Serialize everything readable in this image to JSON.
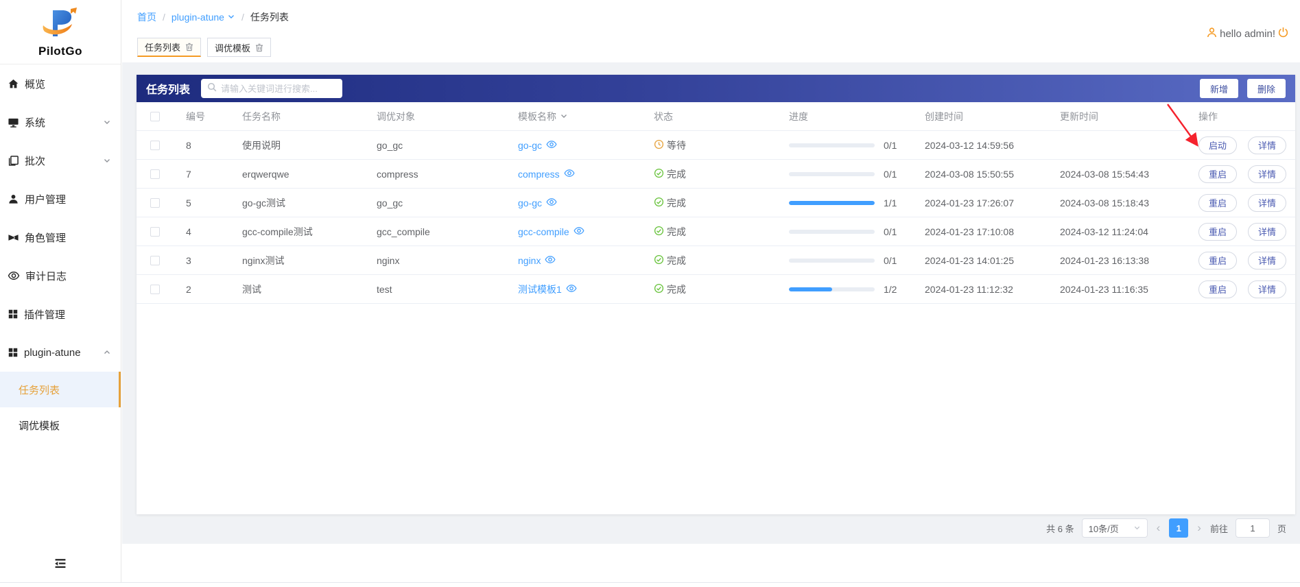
{
  "brand": {
    "name": "PilotGo"
  },
  "breadcrumb": {
    "items": [
      {
        "label": "首页",
        "link": true,
        "caret": false
      },
      {
        "label": "plugin-atune",
        "link": true,
        "caret": true
      },
      {
        "label": "任务列表",
        "link": false,
        "caret": false
      }
    ]
  },
  "user": {
    "greeting": "hello admin!"
  },
  "tabs": [
    {
      "label": "任务列表",
      "active": true
    },
    {
      "label": "调优模板",
      "active": false
    }
  ],
  "sidebar": {
    "items": [
      {
        "key": "overview",
        "label": "概览",
        "icon": "home-icon"
      },
      {
        "key": "system",
        "label": "系统",
        "icon": "monitor-icon",
        "chevron": "down"
      },
      {
        "key": "batch",
        "label": "批次",
        "icon": "batch-icon",
        "chevron": "down"
      },
      {
        "key": "users",
        "label": "用户管理",
        "icon": "user-icon"
      },
      {
        "key": "roles",
        "label": "角色管理",
        "icon": "role-icon"
      },
      {
        "key": "audit-log",
        "label": "审计日志",
        "icon": "audit-icon"
      },
      {
        "key": "plugins",
        "label": "插件管理",
        "icon": "plugin-icon"
      },
      {
        "key": "plugin-atune",
        "label": "plugin-atune",
        "icon": "grid-icon",
        "chevron": "up",
        "children": [
          {
            "key": "task-list",
            "label": "任务列表",
            "active": true
          },
          {
            "key": "tuning-template",
            "label": "调优模板",
            "active": false
          }
        ]
      }
    ]
  },
  "panel": {
    "title": "任务列表",
    "search_placeholder": "请输入关键词进行搜索...",
    "add_label": "新增",
    "delete_label": "删除"
  },
  "table": {
    "columns": [
      "编号",
      "任务名称",
      "调优对象",
      "模板名称",
      "状态",
      "进度",
      "创建时间",
      "更新时间",
      "操作"
    ],
    "rows": [
      {
        "id": "8",
        "name": "使用说明",
        "target": "go_gc",
        "template": "go-gc",
        "status": "等待",
        "status_type": "waiting",
        "progress_text": "0/1",
        "progress_pct": 0,
        "created": "2024-03-12 14:59:56",
        "updated": "",
        "actions": [
          "启动",
          "详情"
        ]
      },
      {
        "id": "7",
        "name": "erqwerqwe",
        "target": "compress",
        "template": "compress",
        "status": "完成",
        "status_type": "done",
        "progress_text": "0/1",
        "progress_pct": 0,
        "created": "2024-03-08 15:50:55",
        "updated": "2024-03-08 15:54:43",
        "actions": [
          "重启",
          "详情"
        ]
      },
      {
        "id": "5",
        "name": "go-gc测试",
        "target": "go_gc",
        "template": "go-gc",
        "status": "完成",
        "status_type": "done",
        "progress_text": "1/1",
        "progress_pct": 100,
        "created": "2024-01-23 17:26:07",
        "updated": "2024-03-08 15:18:43",
        "actions": [
          "重启",
          "详情"
        ]
      },
      {
        "id": "4",
        "name": "gcc-compile测试",
        "target": "gcc_compile",
        "template": "gcc-compile",
        "status": "完成",
        "status_type": "done",
        "progress_text": "0/1",
        "progress_pct": 0,
        "created": "2024-01-23 17:10:08",
        "updated": "2024-03-12 11:24:04",
        "actions": [
          "重启",
          "详情"
        ]
      },
      {
        "id": "3",
        "name": "nginx测试",
        "target": "nginx",
        "template": "nginx",
        "status": "完成",
        "status_type": "done",
        "progress_text": "0/1",
        "progress_pct": 0,
        "created": "2024-01-23 14:01:25",
        "updated": "2024-01-23 16:13:38",
        "actions": [
          "重启",
          "详情"
        ]
      },
      {
        "id": "2",
        "name": "测试",
        "target": "test",
        "template": "测试模板1",
        "status": "完成",
        "status_type": "done",
        "progress_text": "1/2",
        "progress_pct": 50,
        "created": "2024-01-23 11:12:32",
        "updated": "2024-01-23 11:16:35",
        "actions": [
          "重启",
          "详情"
        ]
      }
    ]
  },
  "pagination": {
    "total": "共 6 条",
    "page_size": "10条/页",
    "active_page": "1",
    "goto_label": "前往",
    "goto_value": "1",
    "unit": "页"
  },
  "colors": {
    "accent": "#409eff",
    "panel_gradient_left": "#1d2b7e",
    "panel_gradient_right": "#5a6cc5",
    "tab_active_orange": "#f59a23",
    "sidebar_active_text": "#e6a23c",
    "status_done": "#67c23a",
    "status_waiting": "#e6a23c",
    "action_button_text": "#4a5ab1",
    "annotation_red": "#f5222d"
  }
}
